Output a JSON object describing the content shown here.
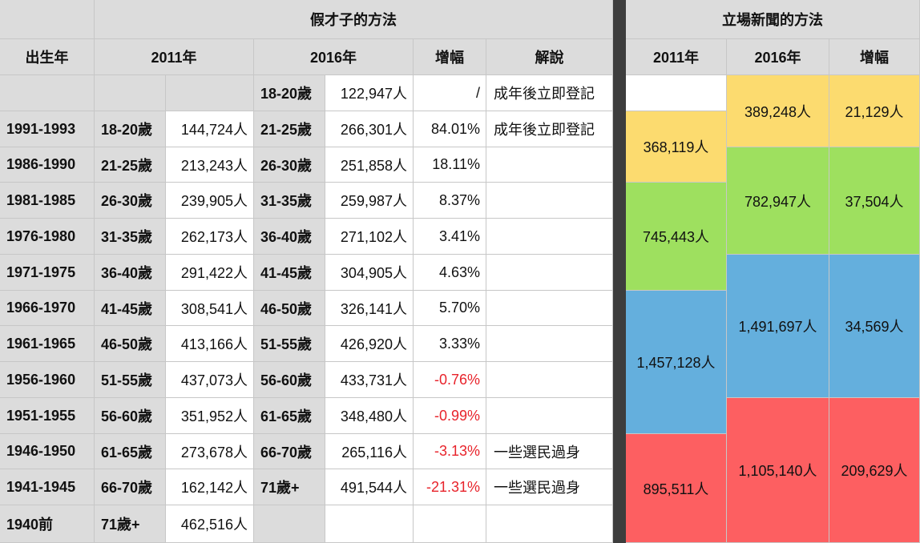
{
  "headers": {
    "section_left": "假才子的方法",
    "section_right": "立場新聞的方法",
    "birth_year": "出生年",
    "y2011": "2011年",
    "y2016": "2016年",
    "growth": "增幅",
    "explain": "解說"
  },
  "rows": [
    {
      "birth": "",
      "age2011": "",
      "val2011": "",
      "age2016": "18-20歲",
      "val2016": "122,947人",
      "growth": "/",
      "negative": false,
      "note": "成年後立即登記"
    },
    {
      "birth": "1991-1993",
      "age2011": "18-20歲",
      "val2011": "144,724人",
      "age2016": "21-25歲",
      "val2016": "266,301人",
      "growth": "84.01%",
      "negative": false,
      "note": "成年後立即登記"
    },
    {
      "birth": "1986-1990",
      "age2011": "21-25歲",
      "val2011": "213,243人",
      "age2016": "26-30歲",
      "val2016": "251,858人",
      "growth": "18.11%",
      "negative": false,
      "note": ""
    },
    {
      "birth": "1981-1985",
      "age2011": "26-30歲",
      "val2011": "239,905人",
      "age2016": "31-35歲",
      "val2016": "259,987人",
      "growth": "8.37%",
      "negative": false,
      "note": ""
    },
    {
      "birth": "1976-1980",
      "age2011": "31-35歲",
      "val2011": "262,173人",
      "age2016": "36-40歲",
      "val2016": "271,102人",
      "growth": "3.41%",
      "negative": false,
      "note": ""
    },
    {
      "birth": "1971-1975",
      "age2011": "36-40歲",
      "val2011": "291,422人",
      "age2016": "41-45歲",
      "val2016": "304,905人",
      "growth": "4.63%",
      "negative": false,
      "note": ""
    },
    {
      "birth": "1966-1970",
      "age2011": "41-45歲",
      "val2011": "308,541人",
      "age2016": "46-50歲",
      "val2016": "326,141人",
      "growth": "5.70%",
      "negative": false,
      "note": ""
    },
    {
      "birth": "1961-1965",
      "age2011": "46-50歲",
      "val2011": "413,166人",
      "age2016": "51-55歲",
      "val2016": "426,920人",
      "growth": "3.33%",
      "negative": false,
      "note": ""
    },
    {
      "birth": "1956-1960",
      "age2011": "51-55歲",
      "val2011": "437,073人",
      "age2016": "56-60歲",
      "val2016": "433,731人",
      "growth": "-0.76%",
      "negative": true,
      "note": ""
    },
    {
      "birth": "1951-1955",
      "age2011": "56-60歲",
      "val2011": "351,952人",
      "age2016": "61-65歲",
      "val2016": "348,480人",
      "growth": "-0.99%",
      "negative": true,
      "note": ""
    },
    {
      "birth": "1946-1950",
      "age2011": "61-65歲",
      "val2011": "273,678人",
      "age2016": "66-70歲",
      "val2016": "265,116人",
      "growth": "-3.13%",
      "negative": true,
      "note": "一些選民過身"
    },
    {
      "birth": "1941-1945",
      "age2011": "66-70歲",
      "val2011": "162,142人",
      "age2016": "71歲+",
      "val2016": "491,544人",
      "growth": "-21.31%",
      "negative": true,
      "note": "一些選民過身"
    },
    {
      "birth": "1940前",
      "age2011": "71歲+",
      "val2011": "462,516人",
      "age2016": "",
      "val2016": "",
      "growth": "",
      "negative": false,
      "note": ""
    }
  ],
  "right_groups": {
    "col2011": [
      {
        "value": "",
        "color": "#ffffff"
      },
      {
        "value": "368,119人",
        "color": "#fcdb6f"
      },
      {
        "value": "745,443人",
        "color": "#9ee05f"
      },
      {
        "value": "1,457,128人",
        "color": "#64afdd"
      },
      {
        "value": "895,511人",
        "color": "#fd5f61"
      }
    ],
    "col2016": [
      {
        "value": "389,248人",
        "color": "#fcdb6f"
      },
      {
        "value": "782,947人",
        "color": "#9ee05f"
      },
      {
        "value": "1,491,697人",
        "color": "#64afdd"
      },
      {
        "value": "1,105,140人",
        "color": "#fd5f61"
      }
    ],
    "colGrowth": [
      {
        "value": "21,129人",
        "color": "#fcdb6f"
      },
      {
        "value": "37,504人",
        "color": "#9ee05f"
      },
      {
        "value": "34,569人",
        "color": "#64afdd"
      },
      {
        "value": "209,629人",
        "color": "#fd5f61"
      }
    ]
  },
  "colors": {
    "header_bg": "#dcdcdc",
    "separator": "#3d3d3d",
    "negative_text": "#e8232b"
  }
}
